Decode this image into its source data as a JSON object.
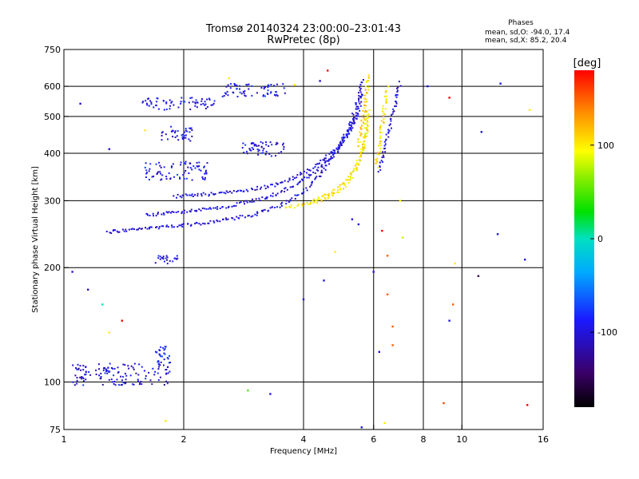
{
  "chart_data": {
    "type": "scatter",
    "title": "Tromsø 20140324 23:00:00–23:01:43",
    "subtitle": "RwPretec (8p)",
    "xlabel": "Frequency [MHz]",
    "ylabel": "Stationary phase Virtual Height [km]",
    "x_scale": "log",
    "y_scale": "log",
    "xlim": [
      1,
      16
    ],
    "ylim": [
      75,
      750
    ],
    "x_ticks": [
      1,
      2,
      4,
      6,
      8,
      10,
      16
    ],
    "y_ticks": [
      75,
      100,
      200,
      300,
      400,
      500,
      600,
      750
    ],
    "x_gridlines": [
      2,
      4,
      6,
      8,
      10
    ],
    "y_gridlines": [
      100,
      200,
      300,
      400,
      500,
      600
    ],
    "grid": true,
    "legend": {
      "title": "Phases",
      "lines": [
        "mean, sd,O: -94.0, 17.4",
        "mean, sd,X:  85.2, 20.4"
      ],
      "placement": "top-right"
    },
    "colorbar": {
      "label": "[deg]",
      "range": [
        -180,
        180
      ],
      "ticks": [
        100,
        0,
        -100
      ]
    },
    "traces": [
      {
        "kind": "curve",
        "phase": -100,
        "x": [
          1.28,
          1.5,
          1.8,
          2.1,
          2.5,
          3.0,
          3.4,
          3.7,
          4.0,
          4.3,
          4.6,
          4.9,
          5.2,
          5.4,
          5.55,
          5.65
        ],
        "y": [
          248,
          252,
          256,
          260,
          266,
          276,
          288,
          300,
          318,
          342,
          372,
          410,
          460,
          520,
          580,
          630
        ]
      },
      {
        "kind": "curve",
        "phase": -100,
        "x": [
          1.6,
          2.0,
          2.5,
          3.0,
          3.5,
          3.9,
          4.3,
          4.7,
          5.0,
          5.3,
          5.5,
          5.62
        ],
        "y": [
          275,
          280,
          288,
          300,
          315,
          335,
          360,
          390,
          425,
          470,
          520,
          580
        ]
      },
      {
        "kind": "curve",
        "phase": -100,
        "x": [
          1.9,
          2.3,
          2.8,
          3.3,
          3.7,
          4.1,
          4.5,
          4.9,
          5.2,
          5.5
        ],
        "y": [
          308,
          312,
          318,
          328,
          342,
          360,
          385,
          420,
          460,
          510
        ]
      },
      {
        "kind": "curve",
        "phase": 100,
        "x": [
          3.6,
          4.0,
          4.4,
          4.8,
          5.1,
          5.4,
          5.6,
          5.72,
          5.8
        ],
        "y": [
          288,
          292,
          300,
          312,
          330,
          360,
          400,
          450,
          520
        ]
      },
      {
        "kind": "curve",
        "phase": 100,
        "x": [
          4.2,
          4.6,
          5.0,
          5.3,
          5.6,
          5.75,
          5.85
        ],
        "y": [
          300,
          312,
          330,
          355,
          395,
          450,
          520
        ]
      },
      {
        "kind": "curve",
        "phase": 110,
        "x": [
          5.5,
          5.6,
          5.7,
          5.75,
          5.8,
          5.82
        ],
        "y": [
          420,
          470,
          520,
          570,
          610,
          650
        ]
      },
      {
        "kind": "curve",
        "phase": -100,
        "x": [
          6.2,
          6.35,
          6.5,
          6.65,
          6.8,
          6.9,
          7.0
        ],
        "y": [
          360,
          400,
          440,
          490,
          540,
          580,
          620
        ]
      },
      {
        "kind": "curve",
        "phase": 105,
        "x": [
          6.1,
          6.2,
          6.3,
          6.4,
          6.5
        ],
        "y": [
          370,
          420,
          480,
          540,
          600
        ]
      },
      {
        "kind": "band",
        "phase": -95,
        "x": [
          1.55,
          2.4
        ],
        "y": [
          520,
          560
        ]
      },
      {
        "kind": "band",
        "phase": -95,
        "x": [
          2.5,
          3.6
        ],
        "y": [
          560,
          610
        ]
      },
      {
        "kind": "band",
        "phase": -100,
        "x": [
          1.75,
          2.1
        ],
        "y": [
          430,
          470
        ]
      },
      {
        "kind": "band",
        "phase": -100,
        "x": [
          2.8,
          3.6
        ],
        "y": [
          390,
          430
        ]
      },
      {
        "kind": "band",
        "phase": -95,
        "x": [
          1.6,
          2.3
        ],
        "y": [
          340,
          380
        ]
      },
      {
        "kind": "band",
        "phase": -100,
        "x": [
          1.7,
          1.95
        ],
        "y": [
          205,
          215
        ]
      },
      {
        "kind": "band",
        "phase": -100,
        "x": [
          1.05,
          1.85
        ],
        "y": [
          98,
          112
        ]
      },
      {
        "kind": "band",
        "phase": -90,
        "x": [
          1.7,
          1.85
        ],
        "y": [
          110,
          125
        ]
      }
    ],
    "scatter_points": [
      {
        "x": 1.1,
        "y": 540,
        "phase": -100
      },
      {
        "x": 1.3,
        "y": 410,
        "phase": -100
      },
      {
        "x": 1.6,
        "y": 460,
        "phase": 100
      },
      {
        "x": 1.05,
        "y": 195,
        "phase": -100
      },
      {
        "x": 1.15,
        "y": 175,
        "phase": -100
      },
      {
        "x": 1.25,
        "y": 160,
        "phase": 0
      },
      {
        "x": 1.4,
        "y": 145,
        "phase": 180
      },
      {
        "x": 1.3,
        "y": 135,
        "phase": 100
      },
      {
        "x": 1.8,
        "y": 79,
        "phase": 100
      },
      {
        "x": 2.9,
        "y": 95,
        "phase": 50
      },
      {
        "x": 3.3,
        "y": 93,
        "phase": -100
      },
      {
        "x": 4.0,
        "y": 165,
        "phase": -100
      },
      {
        "x": 4.5,
        "y": 185,
        "phase": -100
      },
      {
        "x": 4.8,
        "y": 220,
        "phase": 100
      },
      {
        "x": 5.3,
        "y": 268,
        "phase": -100
      },
      {
        "x": 5.5,
        "y": 260,
        "phase": -100
      },
      {
        "x": 6.0,
        "y": 195,
        "phase": -100
      },
      {
        "x": 6.3,
        "y": 250,
        "phase": 180
      },
      {
        "x": 6.5,
        "y": 215,
        "phase": 150
      },
      {
        "x": 6.5,
        "y": 170,
        "phase": 150
      },
      {
        "x": 6.7,
        "y": 140,
        "phase": 150
      },
      {
        "x": 6.7,
        "y": 125,
        "phase": 150
      },
      {
        "x": 6.2,
        "y": 120,
        "phase": -100
      },
      {
        "x": 6.4,
        "y": 78,
        "phase": 100
      },
      {
        "x": 5.6,
        "y": 76,
        "phase": -100
      },
      {
        "x": 7.1,
        "y": 240,
        "phase": 80
      },
      {
        "x": 7.0,
        "y": 300,
        "phase": 100
      },
      {
        "x": 9.3,
        "y": 560,
        "phase": 180
      },
      {
        "x": 9.6,
        "y": 205,
        "phase": 100
      },
      {
        "x": 9.5,
        "y": 160,
        "phase": 150
      },
      {
        "x": 9.3,
        "y": 145,
        "phase": -100
      },
      {
        "x": 9.0,
        "y": 88,
        "phase": 160
      },
      {
        "x": 11.0,
        "y": 190,
        "phase": -150
      },
      {
        "x": 11.2,
        "y": 455,
        "phase": -100
      },
      {
        "x": 12.3,
        "y": 245,
        "phase": -100
      },
      {
        "x": 12.5,
        "y": 610,
        "phase": -100
      },
      {
        "x": 14.4,
        "y": 210,
        "phase": -100
      },
      {
        "x": 14.6,
        "y": 87,
        "phase": 180
      },
      {
        "x": 14.8,
        "y": 520,
        "phase": 100
      },
      {
        "x": 4.6,
        "y": 660,
        "phase": 180
      },
      {
        "x": 4.4,
        "y": 620,
        "phase": -100
      },
      {
        "x": 8.2,
        "y": 600,
        "phase": -100
      },
      {
        "x": 3.8,
        "y": 605,
        "phase": 100
      },
      {
        "x": 2.6,
        "y": 630,
        "phase": 100
      }
    ]
  }
}
